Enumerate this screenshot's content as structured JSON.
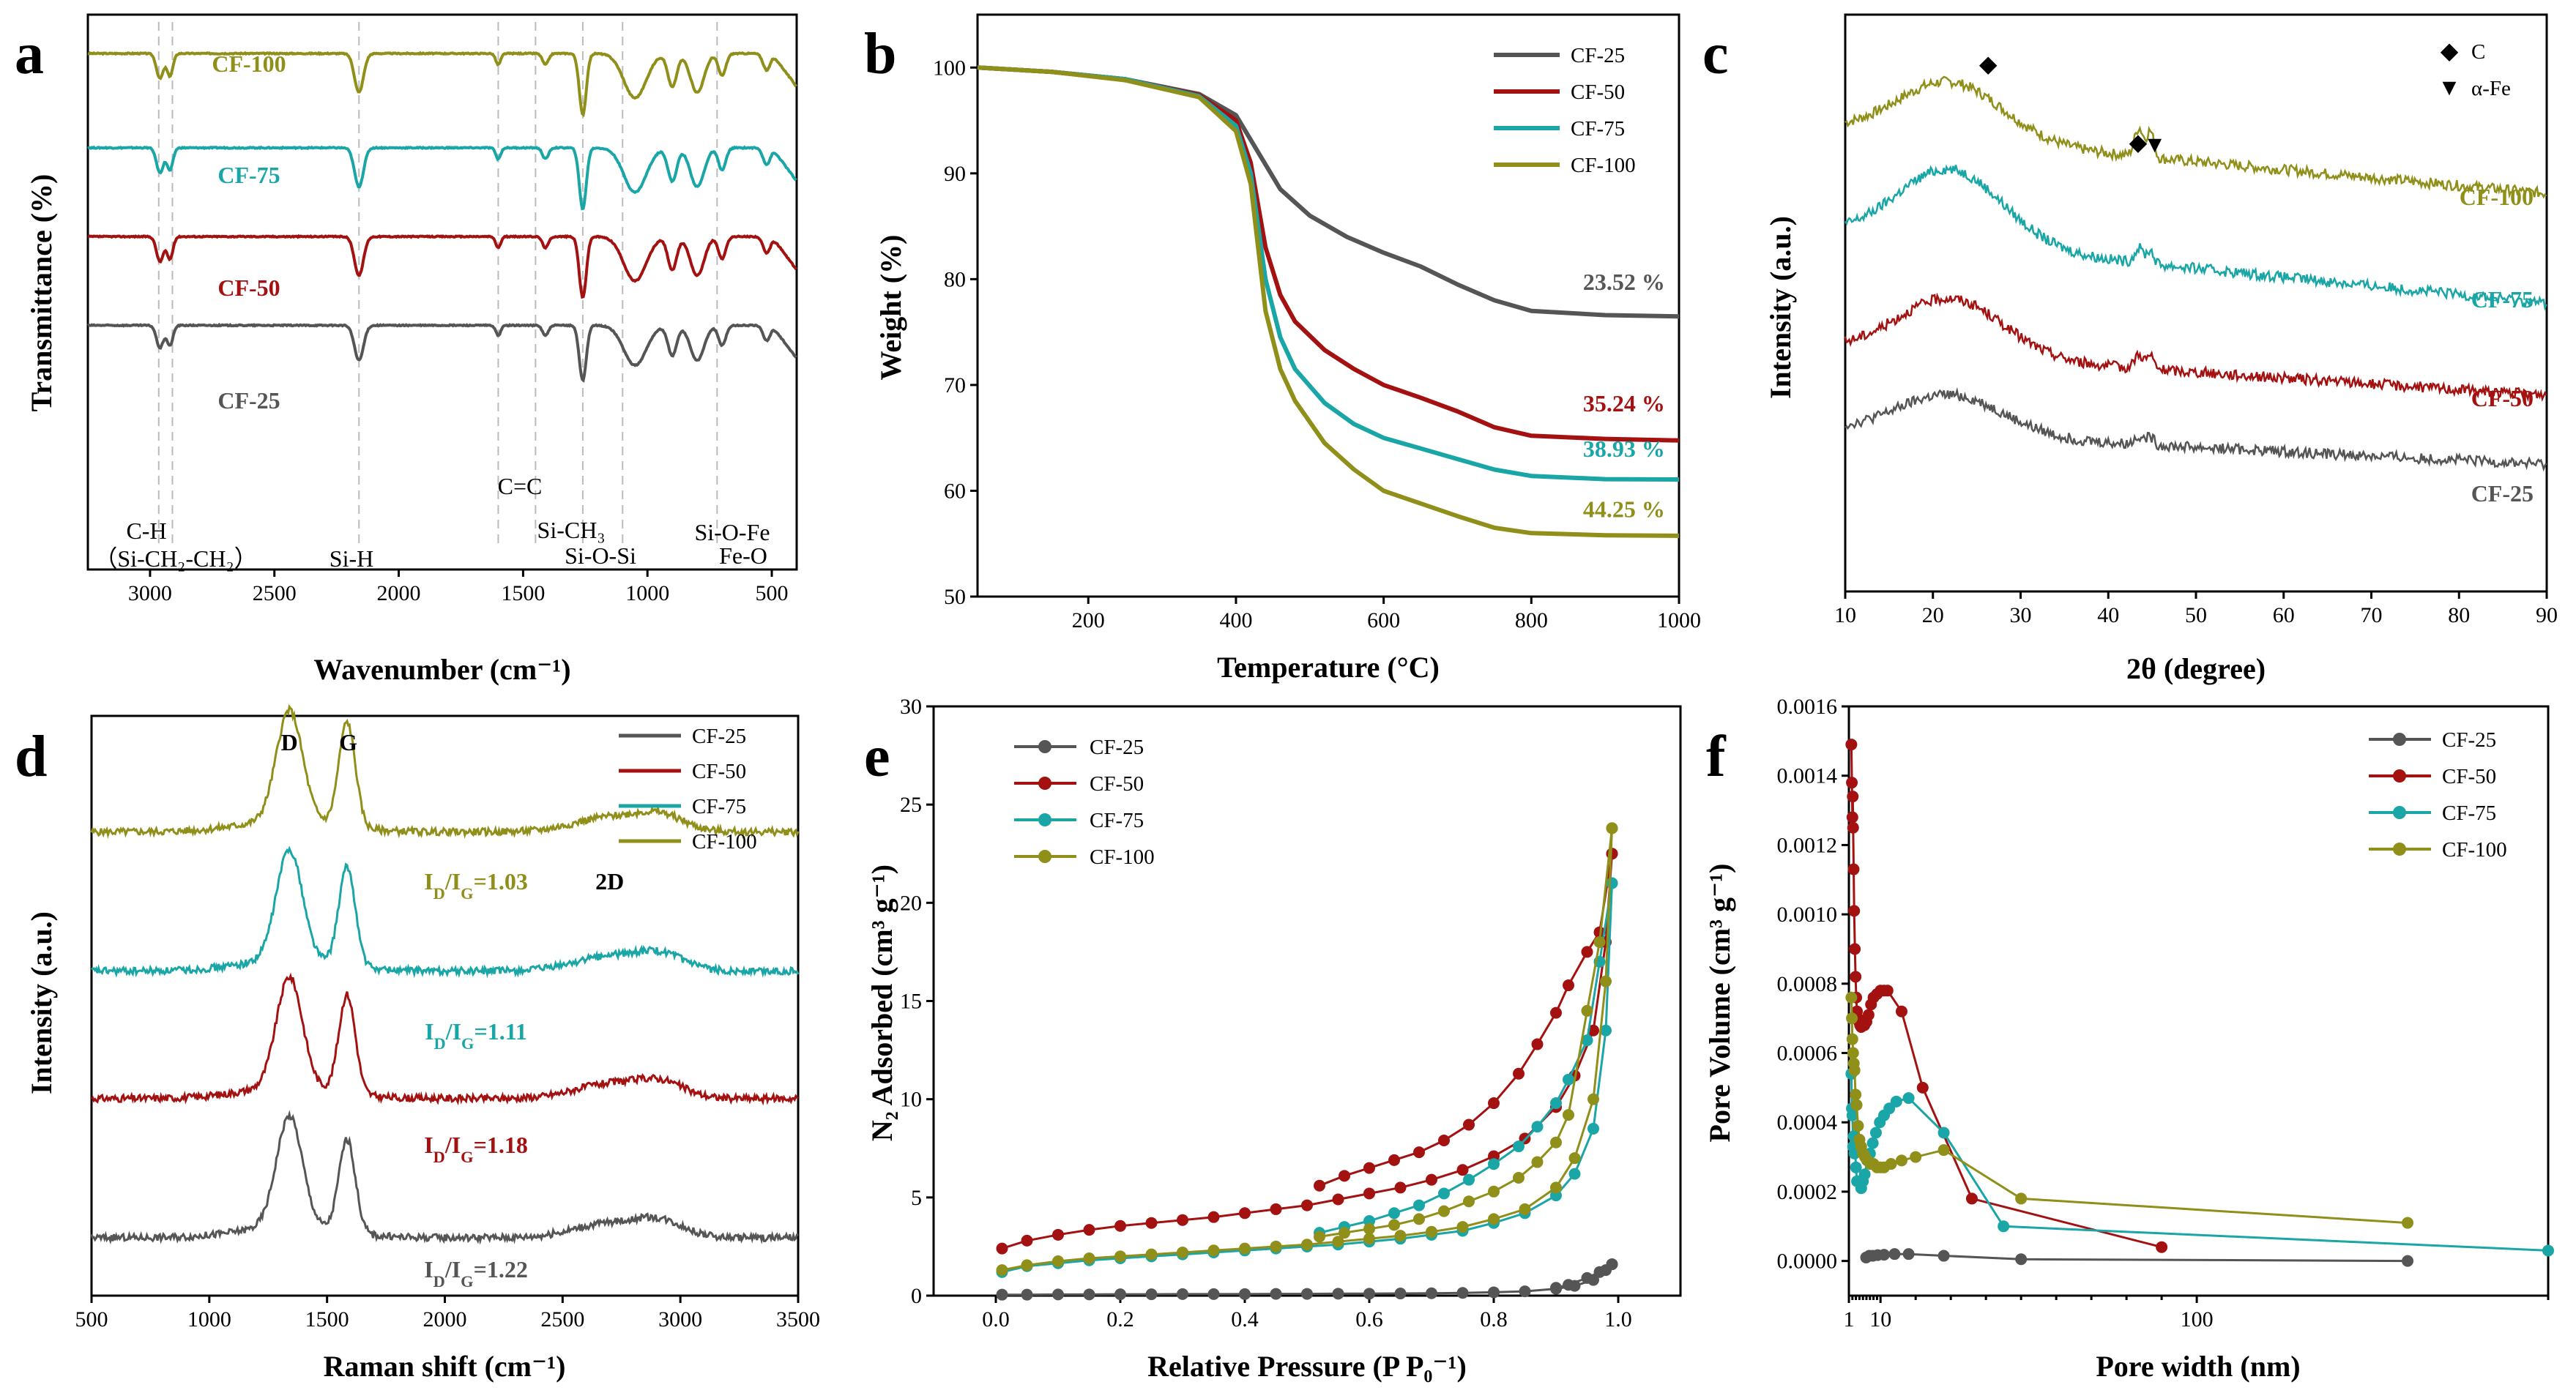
{
  "colors": {
    "CF-25": "#555555",
    "CF-50": "#a31111",
    "CF-75": "#1aa6a6",
    "CF-100": "#8f8f1a"
  },
  "chart_data": [
    {
      "id": "a",
      "panel_label": "a",
      "type": "line",
      "xlabel": "Wavenumber (cm⁻¹)",
      "ylabel": "Transmittance (%)",
      "xlim": [
        3250,
        400
      ],
      "xticks": [
        3000,
        2500,
        2000,
        1500,
        1000,
        500
      ],
      "series_labels": [
        "CF-100",
        "CF-75",
        "CF-50",
        "CF-25"
      ],
      "dashed_lines": [
        2965,
        2910,
        2160,
        1600,
        1450,
        1260,
        1100,
        720
      ],
      "band_positions_cm1": [
        2960,
        2920,
        2160,
        1600,
        1410,
        1260,
        1050,
        900,
        800,
        700,
        520
      ],
      "annotations": [
        {
          "text": "C-H",
          "pos": [
            2950,
            0.24
          ]
        },
        {
          "text": "（Si-CH₂-CH₂）",
          "pos": [
            2840,
            0.1
          ]
        },
        {
          "text": "Si-H",
          "pos": [
            2130,
            0.1
          ]
        },
        {
          "text": "C=C",
          "pos": [
            1490,
            0.45
          ]
        },
        {
          "text": "Si-CH₃",
          "pos": [
            1165,
            0.2
          ]
        },
        {
          "text": "Si-O-Si",
          "pos": [
            1050,
            0.07
          ]
        },
        {
          "text": "Si-O-Fe",
          "pos": [
            760,
            0.2
          ]
        },
        {
          "text": "Fe-O",
          "pos": [
            560,
            0.07
          ]
        }
      ]
    },
    {
      "id": "b",
      "panel_label": "b",
      "type": "line",
      "xlabel": "Temperature (°C)",
      "ylabel": "Weight (%)",
      "xlim": [
        50,
        1000
      ],
      "ylim": [
        50,
        105
      ],
      "xticks": [
        200,
        400,
        600,
        800,
        1000
      ],
      "yticks": [
        50,
        60,
        70,
        80,
        90,
        100
      ],
      "series": [
        {
          "name": "CF-25",
          "x": [
            50,
            150,
            250,
            350,
            400,
            430,
            460,
            500,
            550,
            600,
            650,
            700,
            750,
            800,
            900,
            1000
          ],
          "y": [
            100,
            99.6,
            98.9,
            97.5,
            95.5,
            92,
            88.5,
            86,
            84,
            82.5,
            81.2,
            79.5,
            78,
            77,
            76.6,
            76.48
          ]
        },
        {
          "name": "CF-50",
          "x": [
            50,
            150,
            250,
            350,
            400,
            420,
            440,
            460,
            480,
            520,
            560,
            600,
            650,
            700,
            750,
            800,
            900,
            1000
          ],
          "y": [
            100,
            99.6,
            98.9,
            97.4,
            95,
            91,
            83,
            78.5,
            76,
            73.3,
            71.5,
            70,
            68.8,
            67.5,
            66,
            65.2,
            64.9,
            64.76
          ]
        },
        {
          "name": "CF-75",
          "x": [
            50,
            150,
            250,
            350,
            400,
            420,
            440,
            460,
            480,
            520,
            560,
            600,
            650,
            700,
            750,
            800,
            900,
            1000
          ],
          "y": [
            100,
            99.6,
            98.9,
            97.3,
            94.5,
            90,
            80,
            74.5,
            71.5,
            68.3,
            66.3,
            65,
            64,
            63,
            62,
            61.4,
            61.1,
            61.07
          ]
        },
        {
          "name": "CF-100",
          "x": [
            50,
            150,
            250,
            350,
            400,
            420,
            440,
            460,
            480,
            520,
            560,
            600,
            650,
            700,
            750,
            800,
            900,
            1000
          ],
          "y": [
            100,
            99.6,
            98.8,
            97.2,
            94,
            89,
            77,
            71.5,
            68.5,
            64.5,
            62,
            60,
            58.8,
            57.6,
            56.5,
            56,
            55.8,
            55.75
          ]
        }
      ],
      "value_labels": [
        {
          "series": "CF-25",
          "text": "23.52 %",
          "pos": [
            870,
            79
          ]
        },
        {
          "series": "CF-50",
          "text": "35.24 %",
          "pos": [
            870,
            67.5
          ]
        },
        {
          "series": "CF-75",
          "text": "38.93 %",
          "pos": [
            870,
            63.2
          ]
        },
        {
          "series": "CF-100",
          "text": "44.25 %",
          "pos": [
            870,
            57.5
          ]
        }
      ],
      "legend": "top-right"
    },
    {
      "id": "c",
      "panel_label": "c",
      "type": "line",
      "xlabel": "2θ (degree)",
      "ylabel": "Intensity (a.u.)",
      "xlim": [
        10,
        90
      ],
      "xticks": [
        10,
        20,
        30,
        40,
        50,
        60,
        70,
        80,
        90
      ],
      "series_labels": [
        "CF-100",
        "CF-75",
        "CF-50",
        "CF-25"
      ],
      "markers": [
        {
          "symbol": "◆",
          "name": "C",
          "x": [
            26.3,
            43.5
          ]
        },
        {
          "symbol": "▼",
          "name": "α-Fe",
          "x": [
            45.2
          ]
        }
      ],
      "legend": "top-right"
    },
    {
      "id": "d",
      "panel_label": "d",
      "type": "line",
      "xlabel": "Raman shift (cm⁻¹)",
      "ylabel": "Intensity (a.u.)",
      "xlim": [
        500,
        3500
      ],
      "xticks": [
        500,
        1000,
        1500,
        2000,
        2500,
        3000,
        3500
      ],
      "bands": [
        {
          "label": "D",
          "x": 1340
        },
        {
          "label": "G",
          "x": 1580
        },
        {
          "label": "2D",
          "x": 2700
        }
      ],
      "ratio_labels": [
        {
          "series": "CF-100",
          "text": "I_D/I_G=1.03",
          "value": 1.03
        },
        {
          "series": "CF-75",
          "text": "I_D/I_G=1.11",
          "value": 1.11
        },
        {
          "series": "CF-50",
          "text": "I_D/I_G=1.18",
          "value": 1.18
        },
        {
          "series": "CF-25",
          "text": "I_D/I_G=1.22",
          "value": 1.22
        }
      ],
      "legend": "top-right"
    },
    {
      "id": "e",
      "panel_label": "e",
      "type": "scatter",
      "xlabel": "Relative Pressure (P P₀⁻¹)",
      "ylabel": "N₂ Adsorbed (cm³ g⁻¹)",
      "xlim": [
        -0.1,
        1.1
      ],
      "ylim": [
        0,
        30
      ],
      "xticks": [
        0.0,
        0.2,
        0.4,
        0.6,
        0.8,
        1.0
      ],
      "yticks": [
        0,
        5,
        10,
        15,
        20,
        25,
        30
      ],
      "series": [
        {
          "name": "CF-25",
          "ads": {
            "x": [
              0.01,
              0.05,
              0.1,
              0.15,
              0.2,
              0.25,
              0.3,
              0.35,
              0.4,
              0.45,
              0.5,
              0.55,
              0.6,
              0.65,
              0.7,
              0.75,
              0.8,
              0.85,
              0.9,
              0.93,
              0.96,
              0.98,
              0.99
            ],
            "y": [
              0.05,
              0.05,
              0.06,
              0.06,
              0.07,
              0.07,
              0.08,
              0.08,
              0.08,
              0.09,
              0.09,
              0.1,
              0.1,
              0.11,
              0.12,
              0.14,
              0.17,
              0.22,
              0.35,
              0.5,
              0.8,
              1.3,
              1.6
            ]
          },
          "des": {
            "x": [
              0.99,
              0.97,
              0.95,
              0.92,
              0.9
            ],
            "y": [
              1.6,
              1.2,
              0.9,
              0.55,
              0.4
            ]
          }
        },
        {
          "name": "CF-50",
          "ads": {
            "x": [
              0.01,
              0.05,
              0.1,
              0.15,
              0.2,
              0.25,
              0.3,
              0.35,
              0.4,
              0.45,
              0.5,
              0.55,
              0.6,
              0.65,
              0.7,
              0.75,
              0.8,
              0.85,
              0.9,
              0.93,
              0.96,
              0.98,
              0.99
            ],
            "y": [
              2.4,
              2.8,
              3.1,
              3.35,
              3.55,
              3.7,
              3.85,
              4.0,
              4.2,
              4.4,
              4.6,
              4.9,
              5.2,
              5.5,
              5.9,
              6.4,
              7.1,
              8.0,
              9.6,
              11.2,
              13.5,
              18.0,
              22.5
            ]
          },
          "des": {
            "x": [
              0.99,
              0.97,
              0.95,
              0.92,
              0.9,
              0.87,
              0.84,
              0.8,
              0.76,
              0.72,
              0.68,
              0.64,
              0.6,
              0.56,
              0.52
            ],
            "y": [
              22.5,
              18.5,
              17.5,
              15.8,
              14.4,
              12.8,
              11.3,
              9.8,
              8.7,
              7.9,
              7.3,
              6.9,
              6.5,
              6.1,
              5.6
            ]
          }
        },
        {
          "name": "CF-75",
          "ads": {
            "x": [
              0.01,
              0.05,
              0.1,
              0.15,
              0.2,
              0.25,
              0.3,
              0.35,
              0.4,
              0.45,
              0.5,
              0.55,
              0.6,
              0.65,
              0.7,
              0.75,
              0.8,
              0.85,
              0.9,
              0.93,
              0.96,
              0.98,
              0.99
            ],
            "y": [
              1.2,
              1.5,
              1.65,
              1.8,
              1.9,
              2.0,
              2.1,
              2.2,
              2.3,
              2.4,
              2.5,
              2.6,
              2.75,
              2.9,
              3.1,
              3.3,
              3.7,
              4.2,
              5.1,
              6.2,
              8.5,
              13.5,
              21.0
            ]
          },
          "des": {
            "x": [
              0.99,
              0.97,
              0.95,
              0.92,
              0.9,
              0.87,
              0.84,
              0.8,
              0.76,
              0.72,
              0.68,
              0.64,
              0.6,
              0.56,
              0.52
            ],
            "y": [
              21.0,
              17.0,
              13.0,
              11.0,
              9.8,
              8.6,
              7.6,
              6.7,
              5.9,
              5.2,
              4.6,
              4.2,
              3.8,
              3.5,
              3.2
            ]
          }
        },
        {
          "name": "CF-100",
          "ads": {
            "x": [
              0.01,
              0.05,
              0.1,
              0.15,
              0.2,
              0.25,
              0.3,
              0.35,
              0.4,
              0.45,
              0.5,
              0.55,
              0.6,
              0.65,
              0.7,
              0.75,
              0.8,
              0.85,
              0.9,
              0.93,
              0.96,
              0.98,
              0.99
            ],
            "y": [
              1.3,
              1.55,
              1.75,
              1.9,
              2.0,
              2.1,
              2.2,
              2.3,
              2.4,
              2.5,
              2.6,
              2.75,
              2.9,
              3.05,
              3.25,
              3.5,
              3.9,
              4.4,
              5.5,
              7.0,
              10.0,
              16.0,
              23.8
            ]
          },
          "des": {
            "x": [
              0.99,
              0.97,
              0.95,
              0.92,
              0.9,
              0.87,
              0.84,
              0.8,
              0.76,
              0.72,
              0.68,
              0.64,
              0.6,
              0.56,
              0.52
            ],
            "y": [
              23.8,
              18.0,
              14.5,
              9.2,
              7.8,
              6.8,
              6.0,
              5.3,
              4.8,
              4.3,
              3.9,
              3.6,
              3.4,
              3.2,
              3.0
            ]
          }
        }
      ],
      "legend": "top-left"
    },
    {
      "id": "f",
      "panel_label": "f",
      "type": "scatter",
      "xlabel": "Pore width (nm)",
      "ylabel": "Pore Volume (cm³ g⁻¹)",
      "xscale": "log",
      "xlim": [
        1,
        200
      ],
      "ylim": [
        -0.0001,
        0.0016
      ],
      "xticks": [
        1,
        10,
        100
      ],
      "yticks": [
        0.0,
        0.0002,
        0.0004,
        0.0006,
        0.0008,
        0.001,
        0.0012,
        0.0014,
        0.0016
      ],
      "series": [
        {
          "name": "CF-25",
          "x": [
            5.9,
            6.8,
            7.8,
            9.2,
            11,
            14,
            18,
            28,
            50,
            160
          ],
          "y": [
            1e-05,
            1.5e-05,
            1.5e-05,
            1.7e-05,
            1.8e-05,
            2e-05,
            2e-05,
            1.5e-05,
            5e-06,
            0.0
          ]
        },
        {
          "name": "CF-50",
          "x": [
            1.7,
            1.85,
            2.0,
            2.1,
            2.2,
            2.35,
            2.5,
            2.7,
            2.9,
            3.1,
            3.3,
            3.6,
            3.9,
            4.2,
            4.5,
            4.9,
            5.4,
            6.0,
            6.6,
            7.3,
            8.0,
            9.0,
            10,
            11,
            12,
            16,
            22,
            36,
            90
          ],
          "y": [
            0.00149,
            0.00138,
            0.00128,
            0.00134,
            0.00125,
            0.00113,
            0.00101,
            0.0009,
            0.00082,
            0.00076,
            0.00072,
            0.0007,
            0.00069,
            0.00068,
            0.000675,
            0.00068,
            0.00068,
            0.00069,
            0.00071,
            0.00074,
            0.00076,
            0.00077,
            0.00078,
            0.00078,
            0.00078,
            0.00072,
            0.0005,
            0.00018,
            4e-05
          ]
        },
        {
          "name": "CF-75",
          "x": [
            1.7,
            1.85,
            2.0,
            2.2,
            2.4,
            2.6,
            2.8,
            3.0,
            3.3,
            3.6,
            4.0,
            4.5,
            5.0,
            5.5,
            6.2,
            7.0,
            7.8,
            8.7,
            9.8,
            11,
            12.5,
            14.5,
            18,
            28,
            45,
            200
          ],
          "y": [
            0.00054,
            0.00044,
            0.00042,
            0.00033,
            0.00036,
            0.00031,
            0.00032,
            0.00027,
            0.00023,
            0.00023,
            0.00023,
            0.00021,
            0.00023,
            0.00025,
            0.00029,
            0.00031,
            0.00034,
            0.00037,
            0.0004,
            0.00042,
            0.00044,
            0.00046,
            0.00047,
            0.00037,
            0.0001,
            3e-05
          ]
        },
        {
          "name": "CF-100",
          "x": [
            1.7,
            1.85,
            2.0,
            2.2,
            2.4,
            2.6,
            2.9,
            3.2,
            3.6,
            4.0,
            4.5,
            5.0,
            5.6,
            6.3,
            7.1,
            8.0,
            9.0,
            10,
            11,
            13,
            16,
            20,
            28,
            50,
            160
          ],
          "y": [
            0.00076,
            0.0007,
            0.00064,
            0.0006,
            0.00057,
            0.00055,
            0.00048,
            0.00045,
            0.00039,
            0.00035,
            0.00033,
            0.00031,
            0.0003,
            0.00029,
            0.00028,
            0.00028,
            0.00027,
            0.00027,
            0.00027,
            0.00028,
            0.00029,
            0.0003,
            0.00032,
            0.00018,
            0.00011
          ]
        }
      ],
      "legend": "top-right"
    }
  ]
}
